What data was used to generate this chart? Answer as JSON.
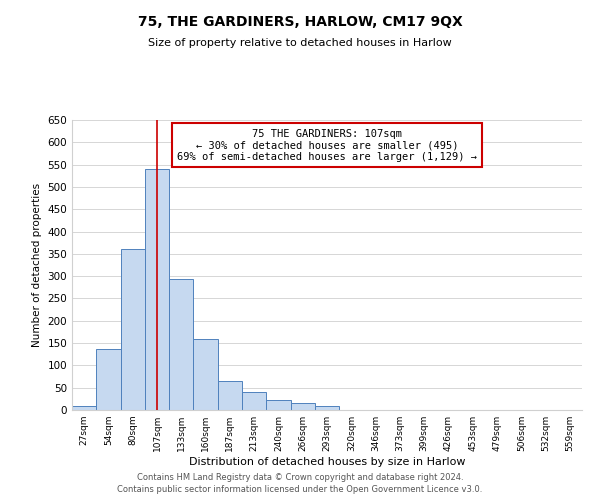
{
  "title": "75, THE GARDINERS, HARLOW, CM17 9QX",
  "subtitle": "Size of property relative to detached houses in Harlow",
  "xlabel": "Distribution of detached houses by size in Harlow",
  "ylabel": "Number of detached properties",
  "bin_labels": [
    "27sqm",
    "54sqm",
    "80sqm",
    "107sqm",
    "133sqm",
    "160sqm",
    "187sqm",
    "213sqm",
    "240sqm",
    "266sqm",
    "293sqm",
    "320sqm",
    "346sqm",
    "373sqm",
    "399sqm",
    "426sqm",
    "453sqm",
    "479sqm",
    "506sqm",
    "532sqm",
    "559sqm"
  ],
  "bar_heights": [
    10,
    137,
    360,
    540,
    293,
    160,
    65,
    40,
    22,
    15,
    8,
    0,
    0,
    0,
    0,
    1,
    0,
    0,
    0,
    0,
    1
  ],
  "bar_color": "#c6d9f0",
  "bar_edge_color": "#4f81bd",
  "vline_x_index": 3,
  "vline_color": "#cc0000",
  "ylim": [
    0,
    650
  ],
  "yticks": [
    0,
    50,
    100,
    150,
    200,
    250,
    300,
    350,
    400,
    450,
    500,
    550,
    600,
    650
  ],
  "annotation_line1": "75 THE GARDINERS: 107sqm",
  "annotation_line2": "← 30% of detached houses are smaller (495)",
  "annotation_line3": "69% of semi-detached houses are larger (1,129) →",
  "annotation_box_color": "#ffffff",
  "annotation_box_edge": "#cc0000",
  "footer1": "Contains HM Land Registry data © Crown copyright and database right 2024.",
  "footer2": "Contains public sector information licensed under the Open Government Licence v3.0.",
  "bg_color": "#ffffff",
  "grid_color": "#d0d0d0"
}
